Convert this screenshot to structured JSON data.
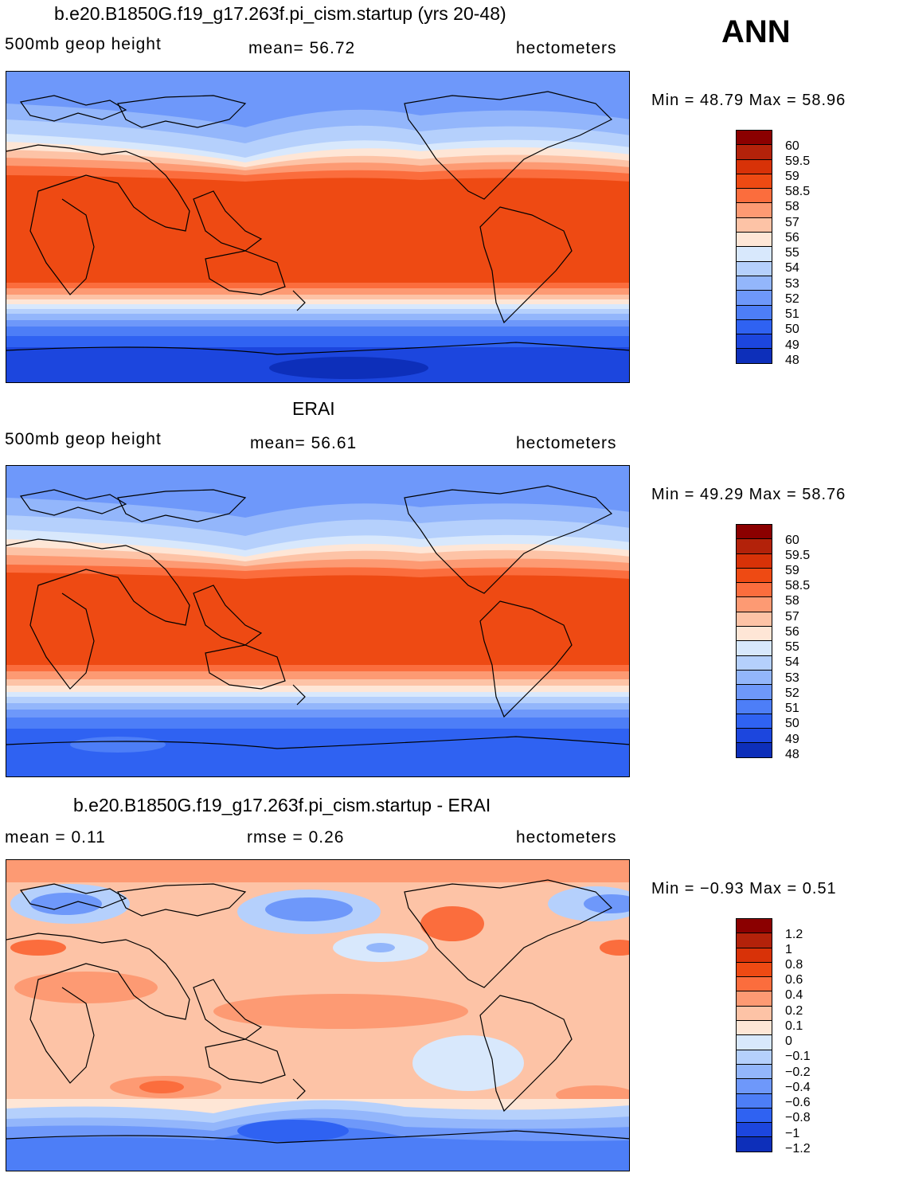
{
  "season_label": "ANN",
  "panels": [
    {
      "id": "model",
      "title": "b.e20.B1850G.f19_g17.263f.pi_cism.startup (yrs 20-48)",
      "left_label": "500mb geop height",
      "center_label": "mean=  56.72",
      "units": "hectometers",
      "min_max": "Min =   48.79 Max =   58.96",
      "levels": [
        "60",
        "59.5",
        "59",
        "58.5",
        "58",
        "57",
        "56",
        "55",
        "54",
        "53",
        "52",
        "51",
        "50",
        "49",
        "48"
      ],
      "colors": [
        "#8b0000",
        "#b3220a",
        "#d83208",
        "#ee4a13",
        "#fb6d3d",
        "#fd9a73",
        "#fdc3a6",
        "#fee6d6",
        "#d8e8fc",
        "#b5d0fc",
        "#93b6fb",
        "#6e98fa",
        "#4d7ef7",
        "#2f62f2",
        "#1c46de",
        "#0d2fba",
        "#00188f"
      ]
    },
    {
      "id": "obs",
      "title": "ERAI",
      "left_label": "500mb geop height",
      "center_label": "mean=  56.61",
      "units": "hectometers",
      "min_max": "Min =   49.29 Max =   58.76",
      "levels": [
        "60",
        "59.5",
        "59",
        "58.5",
        "58",
        "57",
        "56",
        "55",
        "54",
        "53",
        "52",
        "51",
        "50",
        "49",
        "48"
      ],
      "colors": [
        "#8b0000",
        "#b3220a",
        "#d83208",
        "#ee4a13",
        "#fb6d3d",
        "#fd9a73",
        "#fdc3a6",
        "#fee6d6",
        "#d8e8fc",
        "#b5d0fc",
        "#93b6fb",
        "#6e98fa",
        "#4d7ef7",
        "#2f62f2",
        "#1c46de",
        "#0d2fba",
        "#00188f"
      ]
    },
    {
      "id": "diff",
      "title": "b.e20.B1850G.f19_g17.263f.pi_cism.startup - ERAI",
      "left_label": "mean =    0.11",
      "center_label": "rmse =    0.26",
      "units": "hectometers",
      "min_max": "Min =  −0.93 Max =    0.51",
      "levels": [
        "1.2",
        "1",
        "0.8",
        "0.6",
        "0.4",
        "0.2",
        "0.1",
        "0",
        "−0.1",
        "−0.2",
        "−0.4",
        "−0.6",
        "−0.8",
        "−1",
        "−1.2"
      ],
      "colors": [
        "#8b0000",
        "#b3220a",
        "#d83208",
        "#ee4a13",
        "#fb6d3d",
        "#fd9a73",
        "#fdc3a6",
        "#fee6d6",
        "#d8e8fc",
        "#b5d0fc",
        "#93b6fb",
        "#6e98fa",
        "#4d7ef7",
        "#2f62f2",
        "#1c46de",
        "#0d2fba",
        "#00188f"
      ]
    }
  ]
}
